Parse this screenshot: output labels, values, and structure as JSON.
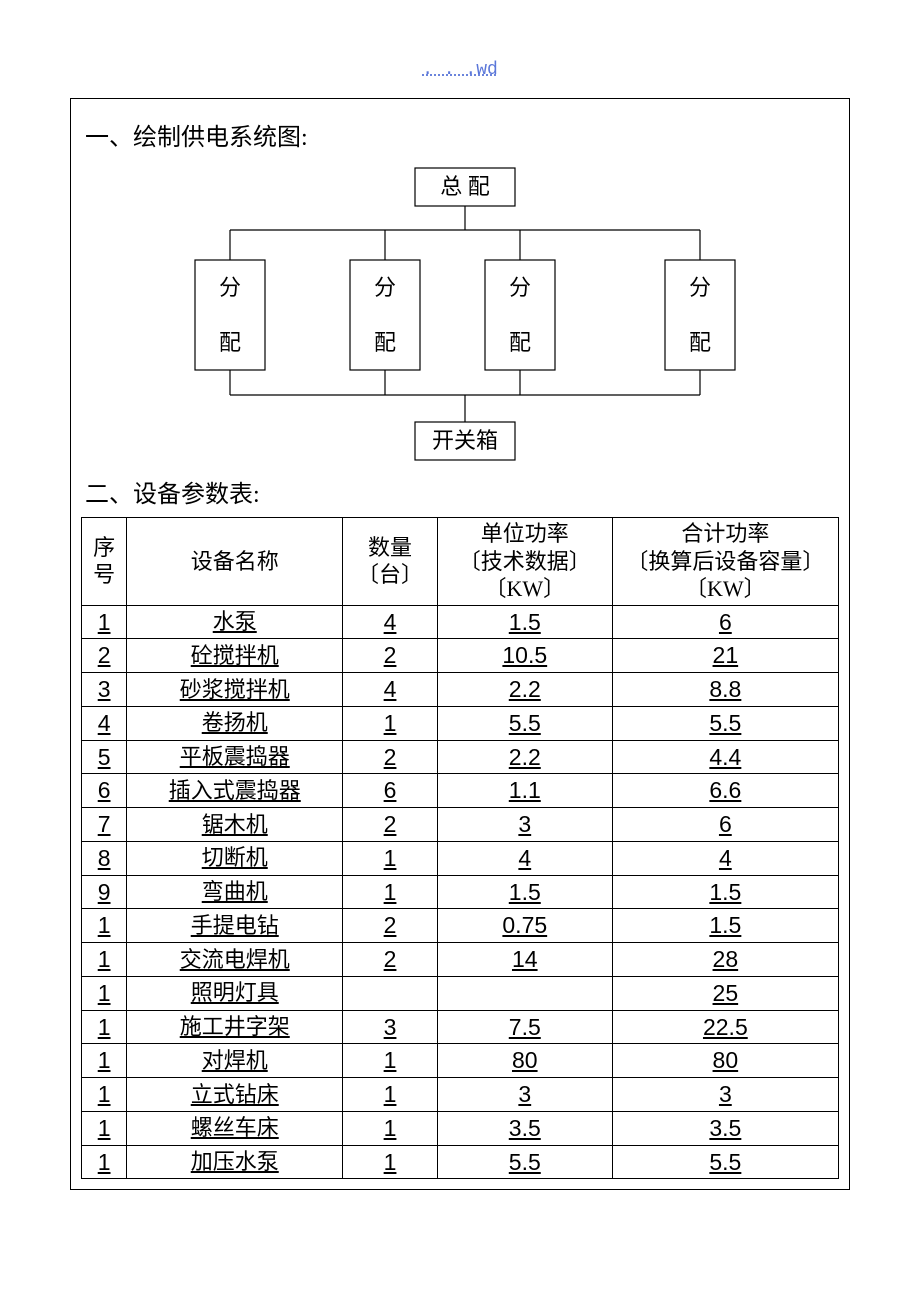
{
  "header_link": ". . .wd",
  "section1_title": "一、绘制供电系统图:",
  "section2_title": "二、设备参数表:",
  "diagram": {
    "root": "总   配",
    "branches": [
      "分",
      "配"
    ],
    "bottom_box": "开关箱",
    "box_stroke": "#000000",
    "bg": "#ffffff",
    "line_width": 1.2
  },
  "table_headers": {
    "seq": "序号",
    "name": "设备名称",
    "qty": "数量〔台〕",
    "unit_power_l1": "单位功率",
    "unit_power_l2": "〔技术数据〕",
    "unit_power_l3": "〔KW〕",
    "total_power_l1": "合计功率",
    "total_power_l2": "〔换算后设备容量〕",
    "total_power_l3": "〔KW〕"
  },
  "equipment": [
    {
      "seq": "1",
      "name": "水泵",
      "qty": "4",
      "unit": "1.5",
      "total": "6"
    },
    {
      "seq": "2",
      "name": "砼搅拌机",
      "qty": "2",
      "unit": "10.5",
      "total": "21"
    },
    {
      "seq": "3",
      "name": "砂浆搅拌机",
      "qty": "4",
      "unit": "2.2",
      "total": "8.8"
    },
    {
      "seq": "4",
      "name": "卷扬机",
      "qty": "1",
      "unit": "5.5",
      "total": "5.5"
    },
    {
      "seq": "5",
      "name": "平板震捣器",
      "qty": "2",
      "unit": "2.2",
      "total": "4.4"
    },
    {
      "seq": "6",
      "name": "插入式震捣器",
      "qty": "6",
      "unit": "1.1",
      "total": "6.6"
    },
    {
      "seq": "7",
      "name": "锯木机",
      "qty": "2",
      "unit": "3",
      "total": "6"
    },
    {
      "seq": "8",
      "name": "切断机",
      "qty": "1",
      "unit": "4",
      "total": "4"
    },
    {
      "seq": "9",
      "name": "弯曲机",
      "qty": "1",
      "unit": "1.5",
      "total": "1.5"
    },
    {
      "seq": "1",
      "name": "手提电钻",
      "qty": "2",
      "unit": "0.75",
      "total": "1.5"
    },
    {
      "seq": "1",
      "name": "交流电焊机",
      "qty": "2",
      "unit": "14",
      "total": "28"
    },
    {
      "seq": "1",
      "name": "照明灯具",
      "qty": "",
      "unit": "",
      "total": "25"
    },
    {
      "seq": "1",
      "name": "施工井字架",
      "qty": "3",
      "unit": "7.5",
      "total": "22.5"
    },
    {
      "seq": "1",
      "name": "对焊机",
      "qty": "1",
      "unit": "80",
      "total": "80"
    },
    {
      "seq": "1",
      "name": "立式钻床",
      "qty": "1",
      "unit": "3",
      "total": "3"
    },
    {
      "seq": "1",
      "name": "螺丝车床",
      "qty": "1",
      "unit": "3.5",
      "total": "3.5"
    },
    {
      "seq": "1",
      "name": "加压水泵",
      "qty": "1",
      "unit": "5.5",
      "total": "5.5"
    }
  ],
  "colors": {
    "link": "#5b77d9",
    "border": "#000000",
    "text": "#000000",
    "bg": "#ffffff"
  }
}
